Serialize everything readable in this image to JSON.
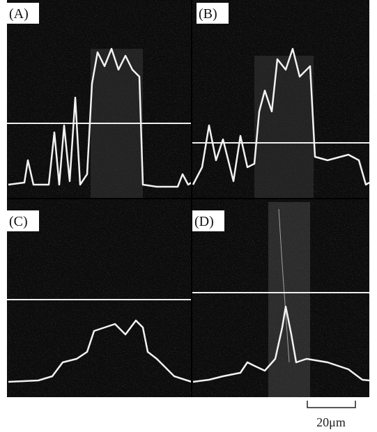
{
  "panels": [
    {
      "label": "(A)"
    },
    {
      "label": "(B)"
    },
    {
      "label": "(C)"
    },
    {
      "label": "(D)"
    }
  ],
  "scale_bar": {
    "label": "20μm"
  }
}
